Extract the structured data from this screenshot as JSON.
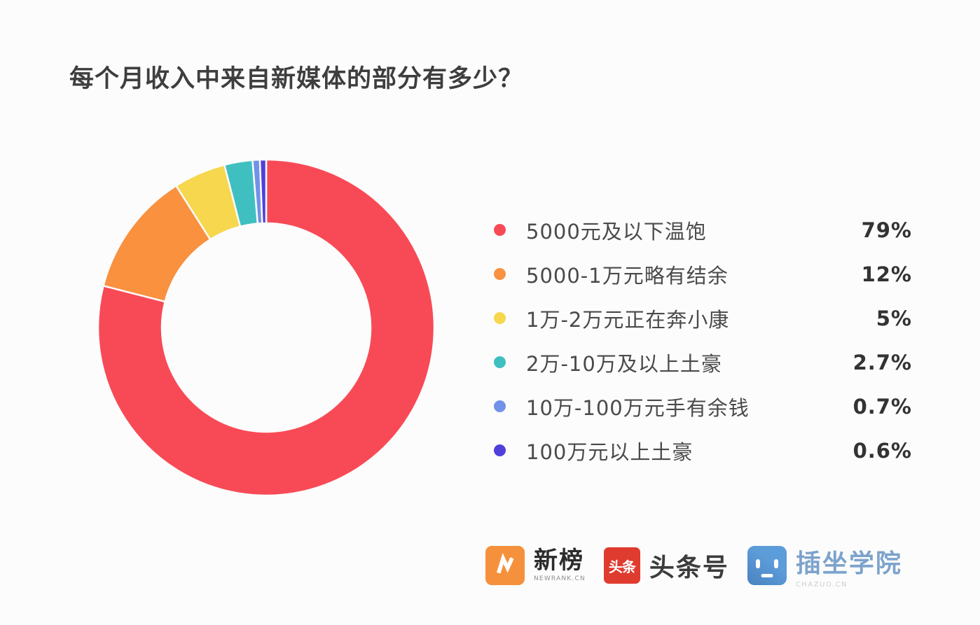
{
  "title": "每个月收入中来自新媒体的部分有多少？",
  "chart_data": {
    "type": "pie",
    "donut": true,
    "title": "每个月收入中来自新媒体的部分有多少？",
    "categories": [
      "5000元及以下温饱",
      "5000-1万元略有结余",
      "1万-2万元正在奔小康",
      "2万-10万及以上土豪",
      "10万-100万元手有余钱",
      "100万元以上土豪"
    ],
    "values": [
      79,
      12,
      5,
      2.7,
      0.7,
      0.6
    ],
    "value_labels": [
      "79%",
      "12%",
      "5%",
      "2.7%",
      "0.7%",
      "0.6%"
    ],
    "colors": [
      "#f84a56",
      "#f9913f",
      "#f6d74d",
      "#3fbfc0",
      "#7292e8",
      "#5040d9"
    ],
    "start_angle_deg": 0,
    "direction": "clockwise",
    "legend_position": "right"
  },
  "legend": {
    "items": [
      {
        "label": "5000元及以下温饱",
        "value_label": "79%",
        "color": "#f84a56"
      },
      {
        "label": "5000-1万元略有结余",
        "value_label": "12%",
        "color": "#f9913f"
      },
      {
        "label": "1万-2万元正在奔小康",
        "value_label": "5%",
        "color": "#f6d74d"
      },
      {
        "label": "2万-10万及以上土豪",
        "value_label": "2.7%",
        "color": "#3fbfc0"
      },
      {
        "label": "10万-100万元手有余钱",
        "value_label": "0.7%",
        "color": "#7292e8"
      },
      {
        "label": "100万元以上土豪",
        "value_label": "0.6%",
        "color": "#5040d9"
      }
    ]
  },
  "footer": {
    "logos": [
      {
        "name": "newrank",
        "text": "新榜",
        "subtext": "NEWRANK.CN",
        "icon_color": "#f5913c"
      },
      {
        "name": "toutiao",
        "text": "头条号",
        "icon_text": "头条",
        "icon_color": "#df3b2f"
      },
      {
        "name": "chazuo",
        "text": "插坐学院",
        "subtext": "CHAZUO.CN",
        "icon_color": "#4d87c5"
      }
    ]
  }
}
